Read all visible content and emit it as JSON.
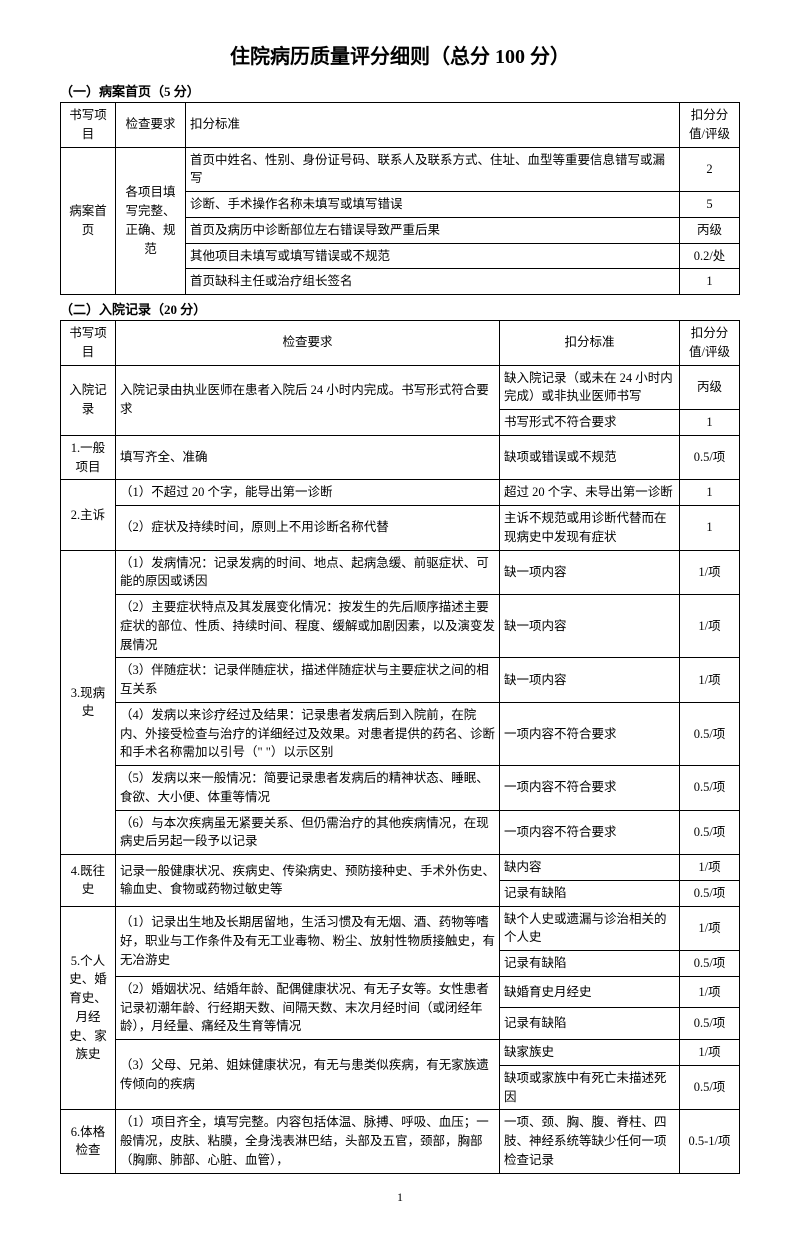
{
  "title": "住院病历质量评分细则（总分 100 分）",
  "section1": {
    "heading": "（一）病案首页（5 分）",
    "headers": {
      "c1": "书写项目",
      "c2": "检查要求",
      "c3": "扣分标准",
      "c4": "扣分分值/评级"
    },
    "item": "病案首页",
    "req": "各项目填写完整、正确、规范",
    "rows": [
      {
        "std": "首页中姓名、性别、身份证号码、联系人及联系方式、住址、血型等重要信息错写或漏写",
        "score": "2"
      },
      {
        "std": "诊断、手术操作名称未填写或填写错误",
        "score": "5"
      },
      {
        "std": "首页及病历中诊断部位左右错误导致严重后果",
        "score": "丙级"
      },
      {
        "std": "其他项目未填写或填写错误或不规范",
        "score": "0.2/处"
      },
      {
        "std": "首页缺科主任或治疗组长签名",
        "score": "1"
      }
    ]
  },
  "section2": {
    "heading": "（二）入院记录（20 分）",
    "headers": {
      "c1": "书写项目",
      "c2": "检查要求",
      "c3": "扣分标准",
      "c4": "扣分分值/评级"
    },
    "groups": [
      {
        "item": "入院记录",
        "rows": [
          {
            "req": "入院记录由执业医师在患者入院后 24 小时内完成。书写形式符合要求",
            "reqRowspan": 2,
            "std": "缺入院记录（或未在 24 小时内完成）或非执业医师书写",
            "score": "丙级"
          },
          {
            "std": "书写形式不符合要求",
            "score": "1"
          }
        ]
      },
      {
        "item": "1.一般项目",
        "rows": [
          {
            "req": "填写齐全、准确",
            "std": "缺项或错误或不规范",
            "score": "0.5/项"
          }
        ]
      },
      {
        "item": "2.主诉",
        "rows": [
          {
            "req": "（1）不超过 20 个字，能导出第一诊断",
            "std": "超过 20 个字、未导出第一诊断",
            "score": "1"
          },
          {
            "req": "（2）症状及持续时间，原则上不用诊断名称代替",
            "std": "主诉不规范或用诊断代替而在现病史中发现有症状",
            "score": "1"
          }
        ]
      },
      {
        "item": "3.现病史",
        "rows": [
          {
            "req": "（1）发病情况：记录发病的时间、地点、起病急缓、前驱症状、可能的原因或诱因",
            "std": "缺一项内容",
            "score": "1/项"
          },
          {
            "req": "（2）主要症状特点及其发展变化情况：按发生的先后顺序描述主要症状的部位、性质、持续时间、程度、缓解或加剧因素，以及演变发展情况",
            "std": "缺一项内容",
            "score": "1/项"
          },
          {
            "req": "（3）伴随症状：记录伴随症状，描述伴随症状与主要症状之间的相互关系",
            "std": "缺一项内容",
            "score": "1/项"
          },
          {
            "req": "（4）发病以来诊疗经过及结果：记录患者发病后到入院前，在院内、外接受检查与治疗的详细经过及效果。对患者提供的药名、诊断和手术名称需加以引号（\" \"）以示区别",
            "std": "一项内容不符合要求",
            "score": "0.5/项"
          },
          {
            "req": "（5）发病以来一般情况：简要记录患者发病后的精神状态、睡眠、食欲、大小便、体重等情况",
            "std": "一项内容不符合要求",
            "score": "0.5/项"
          },
          {
            "req": "（6）与本次疾病虽无紧要关系、但仍需治疗的其他疾病情况，在现病史后另起一段予以记录",
            "std": "一项内容不符合要求",
            "score": "0.5/项"
          }
        ]
      },
      {
        "item": "4.既往史",
        "rows": [
          {
            "req": "记录一般健康状况、疾病史、传染病史、预防接种史、手术外伤史、输血史、食物或药物过敏史等",
            "reqRowspan": 2,
            "std": "缺内容",
            "score": "1/项"
          },
          {
            "std": "记录有缺陷",
            "score": "0.5/项"
          }
        ]
      },
      {
        "item": "5.个人史、婚育史、月经史、家族史",
        "rows": [
          {
            "req": "（1）记录出生地及长期居留地，生活习惯及有无烟、酒、药物等嗜好，职业与工作条件及有无工业毒物、粉尘、放射性物质接触史，有无冶游史",
            "reqRowspan": 2,
            "std": "缺个人史或遗漏与诊治相关的个人史",
            "score": "1/项"
          },
          {
            "std": "记录有缺陷",
            "score": "0.5/项"
          },
          {
            "req": "（2）婚姻状况、结婚年龄、配偶健康状况、有无子女等。女性患者记录初潮年龄、行经期天数、间隔天数、末次月经时间（或闭经年龄），月经量、痛经及生育等情况",
            "reqRowspan": 2,
            "std": "缺婚育史月经史",
            "score": "1/项"
          },
          {
            "std": "记录有缺陷",
            "score": "0.5/项"
          },
          {
            "req": "（3）父母、兄弟、姐妹健康状况，有无与患类似疾病，有无家族遗传倾向的疾病",
            "reqRowspan": 2,
            "std": "缺家族史",
            "score": "1/项"
          },
          {
            "std": "缺项或家族中有死亡未描述死因",
            "score": "0.5/项"
          }
        ]
      },
      {
        "item": "6.体格检查",
        "rows": [
          {
            "req": "（1）项目齐全，填写完整。内容包括体温、脉搏、呼吸、血压；一般情况，皮肤、粘膜，全身浅表淋巴结，头部及五官，颈部，胸部（胸廓、肺部、心脏、血管），",
            "std": "一项、颈、胸、腹、脊柱、四肢、神经系统等缺少任何一项检查记录",
            "score": "0.5-1/项"
          }
        ]
      }
    ]
  },
  "pageNum": "1"
}
